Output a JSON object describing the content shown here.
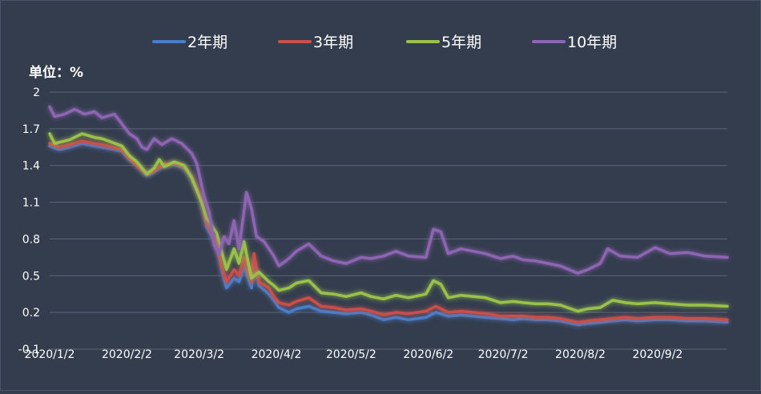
{
  "unit_label": "单位：%",
  "chart_data": {
    "type": "line",
    "ylim": [
      -0.1,
      2
    ],
    "y_ticks": [
      "2",
      "1.7",
      "1.4",
      "1.1",
      "0.8",
      "0.5",
      "0.2",
      "-0.1"
    ],
    "grid": true,
    "legend_position": "top",
    "x_tick_labels": [
      "2020/1/2",
      "2020/2/2",
      "2020/3/2",
      "2020/4/2",
      "2020/5/2",
      "2020/6/2",
      "2020/7/2",
      "2020/8/2",
      "2020/9/2"
    ],
    "x_tick_dates": [
      "2020-01-02",
      "2020-02-02",
      "2020-03-02",
      "2020-04-02",
      "2020-05-02",
      "2020-06-02",
      "2020-07-02",
      "2020-08-02",
      "2020-09-02"
    ],
    "x_range": [
      "2020-01-02",
      "2020-09-30"
    ],
    "series": [
      {
        "name": "2年期",
        "color": "#4a7ec9",
        "points": [
          [
            "2020-01-02",
            1.56
          ],
          [
            "2020-01-06",
            1.53
          ],
          [
            "2020-01-10",
            1.55
          ],
          [
            "2020-01-15",
            1.58
          ],
          [
            "2020-01-20",
            1.56
          ],
          [
            "2020-01-23",
            1.55
          ],
          [
            "2020-01-31",
            1.52
          ],
          [
            "2020-02-03",
            1.45
          ],
          [
            "2020-02-06",
            1.4
          ],
          [
            "2020-02-10",
            1.32
          ],
          [
            "2020-02-13",
            1.35
          ],
          [
            "2020-02-17",
            1.4
          ],
          [
            "2020-02-21",
            1.41
          ],
          [
            "2020-02-25",
            1.38
          ],
          [
            "2020-02-28",
            1.3
          ],
          [
            "2020-03-03",
            1.12
          ],
          [
            "2020-03-05",
            0.9
          ],
          [
            "2020-03-09",
            0.75
          ],
          [
            "2020-03-11",
            0.55
          ],
          [
            "2020-03-13",
            0.4
          ],
          [
            "2020-03-16",
            0.48
          ],
          [
            "2020-03-18",
            0.45
          ],
          [
            "2020-03-20",
            0.58
          ],
          [
            "2020-03-23",
            0.4
          ],
          [
            "2020-03-24",
            0.62
          ],
          [
            "2020-03-26",
            0.42
          ],
          [
            "2020-03-30",
            0.35
          ],
          [
            "2020-04-01",
            0.3
          ],
          [
            "2020-04-03",
            0.24
          ],
          [
            "2020-04-07",
            0.2
          ],
          [
            "2020-04-10",
            0.23
          ],
          [
            "2020-04-15",
            0.25
          ],
          [
            "2020-04-20",
            0.21
          ],
          [
            "2020-04-25",
            0.2
          ],
          [
            "2020-04-30",
            0.19
          ],
          [
            "2020-05-06",
            0.2
          ],
          [
            "2020-05-10",
            0.18
          ],
          [
            "2020-05-15",
            0.14
          ],
          [
            "2020-05-20",
            0.16
          ],
          [
            "2020-05-25",
            0.14
          ],
          [
            "2020-06-01",
            0.16
          ],
          [
            "2020-06-05",
            0.2
          ],
          [
            "2020-06-10",
            0.17
          ],
          [
            "2020-06-15",
            0.18
          ],
          [
            "2020-06-20",
            0.17
          ],
          [
            "2020-06-25",
            0.16
          ],
          [
            "2020-07-01",
            0.15
          ],
          [
            "2020-07-06",
            0.14
          ],
          [
            "2020-07-10",
            0.15
          ],
          [
            "2020-07-15",
            0.14
          ],
          [
            "2020-07-20",
            0.14
          ],
          [
            "2020-07-25",
            0.13
          ],
          [
            "2020-08-01",
            0.1
          ],
          [
            "2020-08-05",
            0.11
          ],
          [
            "2020-08-10",
            0.12
          ],
          [
            "2020-08-15",
            0.13
          ],
          [
            "2020-08-20",
            0.14
          ],
          [
            "2020-08-25",
            0.13
          ],
          [
            "2020-09-01",
            0.14
          ],
          [
            "2020-09-07",
            0.14
          ],
          [
            "2020-09-14",
            0.13
          ],
          [
            "2020-09-21",
            0.13
          ],
          [
            "2020-09-30",
            0.12
          ]
        ]
      },
      {
        "name": "3年期",
        "color": "#c9504a",
        "points": [
          [
            "2020-01-02",
            1.58
          ],
          [
            "2020-01-06",
            1.55
          ],
          [
            "2020-01-10",
            1.57
          ],
          [
            "2020-01-15",
            1.6
          ],
          [
            "2020-01-20",
            1.58
          ],
          [
            "2020-01-23",
            1.57
          ],
          [
            "2020-01-31",
            1.53
          ],
          [
            "2020-02-03",
            1.46
          ],
          [
            "2020-02-06",
            1.4
          ],
          [
            "2020-02-10",
            1.33
          ],
          [
            "2020-02-13",
            1.36
          ],
          [
            "2020-02-17",
            1.41
          ],
          [
            "2020-02-21",
            1.42
          ],
          [
            "2020-02-25",
            1.39
          ],
          [
            "2020-02-28",
            1.31
          ],
          [
            "2020-03-03",
            1.13
          ],
          [
            "2020-03-05",
            0.93
          ],
          [
            "2020-03-09",
            0.78
          ],
          [
            "2020-03-11",
            0.58
          ],
          [
            "2020-03-13",
            0.45
          ],
          [
            "2020-03-16",
            0.55
          ],
          [
            "2020-03-18",
            0.5
          ],
          [
            "2020-03-20",
            0.65
          ],
          [
            "2020-03-23",
            0.45
          ],
          [
            "2020-03-24",
            0.68
          ],
          [
            "2020-03-26",
            0.45
          ],
          [
            "2020-03-30",
            0.4
          ],
          [
            "2020-04-01",
            0.33
          ],
          [
            "2020-04-03",
            0.28
          ],
          [
            "2020-04-07",
            0.26
          ],
          [
            "2020-04-10",
            0.29
          ],
          [
            "2020-04-15",
            0.32
          ],
          [
            "2020-04-20",
            0.25
          ],
          [
            "2020-04-25",
            0.24
          ],
          [
            "2020-04-30",
            0.22
          ],
          [
            "2020-05-06",
            0.23
          ],
          [
            "2020-05-10",
            0.21
          ],
          [
            "2020-05-15",
            0.18
          ],
          [
            "2020-05-20",
            0.2
          ],
          [
            "2020-05-25",
            0.19
          ],
          [
            "2020-06-01",
            0.21
          ],
          [
            "2020-06-05",
            0.25
          ],
          [
            "2020-06-10",
            0.2
          ],
          [
            "2020-06-15",
            0.21
          ],
          [
            "2020-06-20",
            0.2
          ],
          [
            "2020-06-25",
            0.19
          ],
          [
            "2020-07-01",
            0.17
          ],
          [
            "2020-07-06",
            0.17
          ],
          [
            "2020-07-10",
            0.17
          ],
          [
            "2020-07-15",
            0.16
          ],
          [
            "2020-07-20",
            0.16
          ],
          [
            "2020-07-25",
            0.15
          ],
          [
            "2020-08-01",
            0.12
          ],
          [
            "2020-08-05",
            0.13
          ],
          [
            "2020-08-10",
            0.14
          ],
          [
            "2020-08-15",
            0.15
          ],
          [
            "2020-08-20",
            0.16
          ],
          [
            "2020-08-25",
            0.15
          ],
          [
            "2020-09-01",
            0.16
          ],
          [
            "2020-09-07",
            0.16
          ],
          [
            "2020-09-14",
            0.15
          ],
          [
            "2020-09-21",
            0.15
          ],
          [
            "2020-09-30",
            0.14
          ]
        ]
      },
      {
        "name": "5年期",
        "color": "#9bc14c",
        "points": [
          [
            "2020-01-02",
            1.66
          ],
          [
            "2020-01-04",
            1.58
          ],
          [
            "2020-01-10",
            1.61
          ],
          [
            "2020-01-15",
            1.66
          ],
          [
            "2020-01-20",
            1.63
          ],
          [
            "2020-01-23",
            1.62
          ],
          [
            "2020-01-31",
            1.56
          ],
          [
            "2020-02-03",
            1.48
          ],
          [
            "2020-02-06",
            1.43
          ],
          [
            "2020-02-10",
            1.33
          ],
          [
            "2020-02-13",
            1.38
          ],
          [
            "2020-02-15",
            1.45
          ],
          [
            "2020-02-17",
            1.39
          ],
          [
            "2020-02-21",
            1.43
          ],
          [
            "2020-02-25",
            1.4
          ],
          [
            "2020-02-28",
            1.3
          ],
          [
            "2020-03-03",
            1.1
          ],
          [
            "2020-03-05",
            0.97
          ],
          [
            "2020-03-09",
            0.85
          ],
          [
            "2020-03-11",
            0.7
          ],
          [
            "2020-03-13",
            0.55
          ],
          [
            "2020-03-16",
            0.72
          ],
          [
            "2020-03-18",
            0.6
          ],
          [
            "2020-03-20",
            0.78
          ],
          [
            "2020-03-23",
            0.48
          ],
          [
            "2020-03-26",
            0.53
          ],
          [
            "2020-03-30",
            0.45
          ],
          [
            "2020-04-01",
            0.42
          ],
          [
            "2020-04-03",
            0.38
          ],
          [
            "2020-04-07",
            0.4
          ],
          [
            "2020-04-10",
            0.44
          ],
          [
            "2020-04-15",
            0.46
          ],
          [
            "2020-04-20",
            0.36
          ],
          [
            "2020-04-25",
            0.35
          ],
          [
            "2020-04-30",
            0.33
          ],
          [
            "2020-05-06",
            0.36
          ],
          [
            "2020-05-10",
            0.33
          ],
          [
            "2020-05-15",
            0.31
          ],
          [
            "2020-05-20",
            0.34
          ],
          [
            "2020-05-25",
            0.32
          ],
          [
            "2020-06-01",
            0.35
          ],
          [
            "2020-06-04",
            0.46
          ],
          [
            "2020-06-07",
            0.43
          ],
          [
            "2020-06-10",
            0.32
          ],
          [
            "2020-06-15",
            0.34
          ],
          [
            "2020-06-20",
            0.33
          ],
          [
            "2020-06-25",
            0.32
          ],
          [
            "2020-07-01",
            0.28
          ],
          [
            "2020-07-06",
            0.29
          ],
          [
            "2020-07-10",
            0.28
          ],
          [
            "2020-07-15",
            0.27
          ],
          [
            "2020-07-20",
            0.27
          ],
          [
            "2020-07-25",
            0.26
          ],
          [
            "2020-08-01",
            0.21
          ],
          [
            "2020-08-05",
            0.23
          ],
          [
            "2020-08-10",
            0.24
          ],
          [
            "2020-08-15",
            0.3
          ],
          [
            "2020-08-20",
            0.28
          ],
          [
            "2020-08-25",
            0.27
          ],
          [
            "2020-09-01",
            0.28
          ],
          [
            "2020-09-07",
            0.27
          ],
          [
            "2020-09-14",
            0.26
          ],
          [
            "2020-09-21",
            0.26
          ],
          [
            "2020-09-30",
            0.25
          ]
        ]
      },
      {
        "name": "10年期",
        "color": "#8e65b2",
        "points": [
          [
            "2020-01-02",
            1.88
          ],
          [
            "2020-01-04",
            1.8
          ],
          [
            "2020-01-08",
            1.82
          ],
          [
            "2020-01-12",
            1.86
          ],
          [
            "2020-01-16",
            1.82
          ],
          [
            "2020-01-20",
            1.84
          ],
          [
            "2020-01-23",
            1.79
          ],
          [
            "2020-01-28",
            1.82
          ],
          [
            "2020-02-03",
            1.66
          ],
          [
            "2020-02-06",
            1.62
          ],
          [
            "2020-02-08",
            1.55
          ],
          [
            "2020-02-10",
            1.53
          ],
          [
            "2020-02-13",
            1.62
          ],
          [
            "2020-02-16",
            1.57
          ],
          [
            "2020-02-20",
            1.62
          ],
          [
            "2020-02-24",
            1.58
          ],
          [
            "2020-02-28",
            1.5
          ],
          [
            "2020-03-01",
            1.42
          ],
          [
            "2020-03-04",
            1.15
          ],
          [
            "2020-03-06",
            1.02
          ],
          [
            "2020-03-08",
            0.75
          ],
          [
            "2020-03-10",
            0.68
          ],
          [
            "2020-03-12",
            0.82
          ],
          [
            "2020-03-14",
            0.76
          ],
          [
            "2020-03-16",
            0.95
          ],
          [
            "2020-03-18",
            0.72
          ],
          [
            "2020-03-21",
            1.18
          ],
          [
            "2020-03-23",
            1.05
          ],
          [
            "2020-03-25",
            0.82
          ],
          [
            "2020-03-28",
            0.78
          ],
          [
            "2020-04-01",
            0.66
          ],
          [
            "2020-04-03",
            0.58
          ],
          [
            "2020-04-07",
            0.64
          ],
          [
            "2020-04-10",
            0.7
          ],
          [
            "2020-04-15",
            0.76
          ],
          [
            "2020-04-20",
            0.66
          ],
          [
            "2020-04-25",
            0.62
          ],
          [
            "2020-04-30",
            0.6
          ],
          [
            "2020-05-06",
            0.65
          ],
          [
            "2020-05-10",
            0.64
          ],
          [
            "2020-05-15",
            0.66
          ],
          [
            "2020-05-20",
            0.7
          ],
          [
            "2020-05-25",
            0.66
          ],
          [
            "2020-06-01",
            0.65
          ],
          [
            "2020-06-04",
            0.88
          ],
          [
            "2020-06-07",
            0.86
          ],
          [
            "2020-06-10",
            0.68
          ],
          [
            "2020-06-15",
            0.72
          ],
          [
            "2020-06-20",
            0.7
          ],
          [
            "2020-06-25",
            0.68
          ],
          [
            "2020-07-01",
            0.64
          ],
          [
            "2020-07-06",
            0.66
          ],
          [
            "2020-07-10",
            0.63
          ],
          [
            "2020-07-15",
            0.62
          ],
          [
            "2020-07-20",
            0.6
          ],
          [
            "2020-07-25",
            0.58
          ],
          [
            "2020-08-01",
            0.52
          ],
          [
            "2020-08-05",
            0.55
          ],
          [
            "2020-08-10",
            0.6
          ],
          [
            "2020-08-13",
            0.72
          ],
          [
            "2020-08-18",
            0.66
          ],
          [
            "2020-08-25",
            0.65
          ],
          [
            "2020-09-01",
            0.73
          ],
          [
            "2020-09-07",
            0.68
          ],
          [
            "2020-09-14",
            0.69
          ],
          [
            "2020-09-21",
            0.66
          ],
          [
            "2020-09-30",
            0.65
          ]
        ]
      }
    ]
  }
}
